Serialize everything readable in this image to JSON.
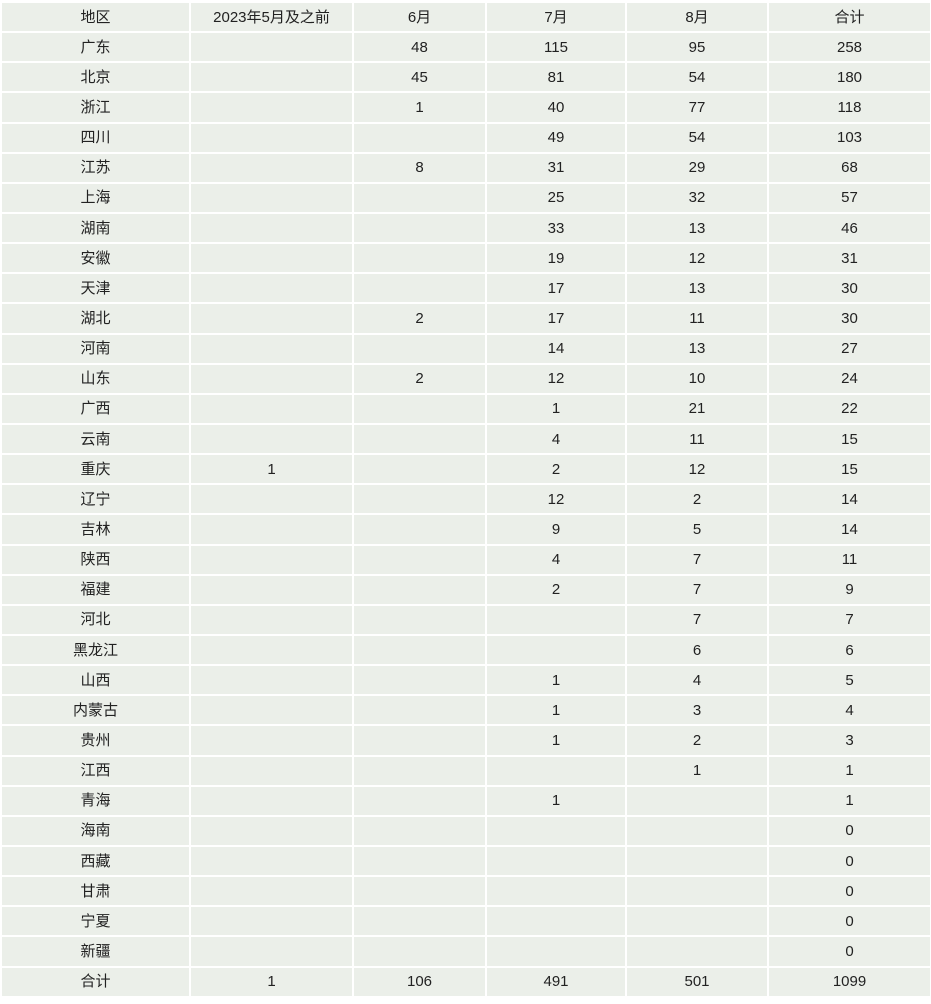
{
  "table": {
    "headers": [
      "地区",
      "2023年5月及之前",
      "6月",
      "7月",
      "8月",
      "合计"
    ],
    "rows": [
      [
        "广东",
        "",
        "48",
        "115",
        "95",
        "258"
      ],
      [
        "北京",
        "",
        "45",
        "81",
        "54",
        "180"
      ],
      [
        "浙江",
        "",
        "1",
        "40",
        "77",
        "118"
      ],
      [
        "四川",
        "",
        "",
        "49",
        "54",
        "103"
      ],
      [
        "江苏",
        "",
        "8",
        "31",
        "29",
        "68"
      ],
      [
        "上海",
        "",
        "",
        "25",
        "32",
        "57"
      ],
      [
        "湖南",
        "",
        "",
        "33",
        "13",
        "46"
      ],
      [
        "安徽",
        "",
        "",
        "19",
        "12",
        "31"
      ],
      [
        "天津",
        "",
        "",
        "17",
        "13",
        "30"
      ],
      [
        "湖北",
        "",
        "2",
        "17",
        "11",
        "30"
      ],
      [
        "河南",
        "",
        "",
        "14",
        "13",
        "27"
      ],
      [
        "山东",
        "",
        "2",
        "12",
        "10",
        "24"
      ],
      [
        "广西",
        "",
        "",
        "1",
        "21",
        "22"
      ],
      [
        "云南",
        "",
        "",
        "4",
        "11",
        "15"
      ],
      [
        "重庆",
        "1",
        "",
        "2",
        "12",
        "15"
      ],
      [
        "辽宁",
        "",
        "",
        "12",
        "2",
        "14"
      ],
      [
        "吉林",
        "",
        "",
        "9",
        "5",
        "14"
      ],
      [
        "陕西",
        "",
        "",
        "4",
        "7",
        "11"
      ],
      [
        "福建",
        "",
        "",
        "2",
        "7",
        "9"
      ],
      [
        "河北",
        "",
        "",
        "",
        "7",
        "7"
      ],
      [
        "黑龙江",
        "",
        "",
        "",
        "6",
        "6"
      ],
      [
        "山西",
        "",
        "",
        "1",
        "4",
        "5"
      ],
      [
        "内蒙古",
        "",
        "",
        "1",
        "3",
        "4"
      ],
      [
        "贵州",
        "",
        "",
        "1",
        "2",
        "3"
      ],
      [
        "江西",
        "",
        "",
        "",
        "1",
        "1"
      ],
      [
        "青海",
        "",
        "",
        "1",
        "",
        "1"
      ],
      [
        "海南",
        "",
        "",
        "",
        "",
        "0"
      ],
      [
        "西藏",
        "",
        "",
        "",
        "",
        "0"
      ],
      [
        "甘肃",
        "",
        "",
        "",
        "",
        "0"
      ],
      [
        "宁夏",
        "",
        "",
        "",
        "",
        "0"
      ],
      [
        "新疆",
        "",
        "",
        "",
        "",
        "0"
      ]
    ],
    "total": [
      "合计",
      "1",
      "106",
      "491",
      "501",
      "1099"
    ],
    "cell_color": "#ebefe9"
  }
}
